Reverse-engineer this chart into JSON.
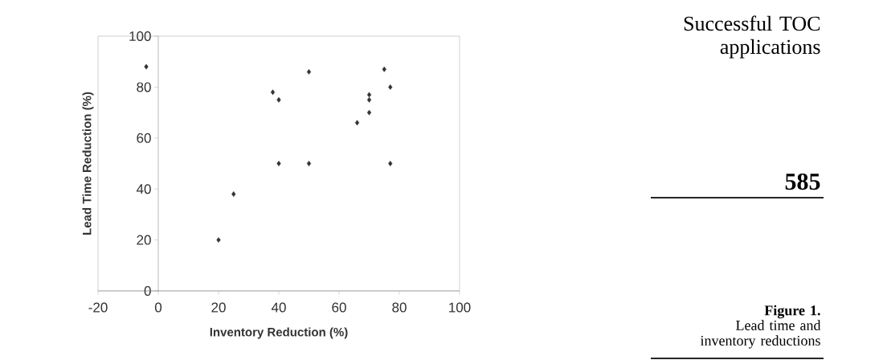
{
  "chart_data": {
    "type": "scatter",
    "xlabel": "Inventory Reduction (%)",
    "ylabel": "Lead Time Reduction (%)",
    "x": [
      -4,
      20,
      25,
      38,
      40,
      40,
      50,
      50,
      66,
      70,
      70,
      70,
      75,
      77,
      77
    ],
    "series": [
      {
        "color": "#333333",
        "values": [
          88,
          20,
          38,
          78,
          75,
          50,
          86,
          50,
          66,
          77,
          75,
          70,
          87,
          80,
          50
        ]
      }
    ],
    "xlim": [
      -20,
      100
    ],
    "xticks": [
      -20,
      0,
      20,
      40,
      60,
      80,
      100
    ],
    "ylim": [
      0,
      100
    ],
    "yticks": [
      0,
      20,
      40,
      60,
      80,
      100
    ],
    "marker": "diamond",
    "annotations": [
      "Successful TOC applications",
      "585",
      "Figure 1.",
      "Lead time and inventory reductions"
    ]
  }
}
